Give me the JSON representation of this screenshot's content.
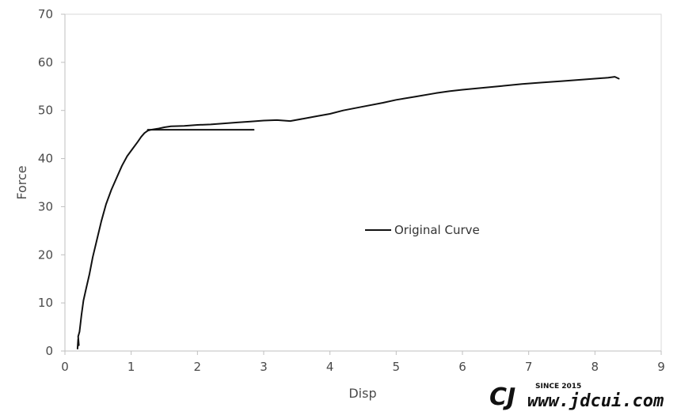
{
  "chart_data": {
    "type": "line",
    "xlabel": "Disp",
    "ylabel": "Force",
    "xlim": [
      0,
      9
    ],
    "ylim": [
      0,
      70
    ],
    "x_ticks": [
      0,
      1,
      2,
      3,
      4,
      5,
      6,
      7,
      8,
      9
    ],
    "y_ticks": [
      0,
      10,
      20,
      30,
      40,
      50,
      60,
      70
    ],
    "grid": false,
    "legend_position": "center-right",
    "series": [
      {
        "name": "Original Curve",
        "color": "#111111",
        "x": [
          0.19,
          0.2,
          0.21,
          0.2,
          0.22,
          0.25,
          0.28,
          0.32,
          0.37,
          0.42,
          0.48,
          0.55,
          0.62,
          0.7,
          0.78,
          0.86,
          0.94,
          1.02,
          1.1,
          1.15,
          1.2,
          1.25,
          1.3,
          1.4,
          1.5,
          1.6,
          1.8,
          2.0,
          2.2,
          2.4,
          2.6,
          2.8,
          3.0,
          3.2,
          3.4,
          3.6,
          3.8,
          4.0,
          4.2,
          4.5,
          4.8,
          5.0,
          5.3,
          5.6,
          5.8,
          6.0,
          6.3,
          6.6,
          6.9,
          7.2,
          7.5,
          7.8,
          8.0,
          8.2,
          8.3,
          8.36
        ],
        "y": [
          0.5,
          2.5,
          1.2,
          3.0,
          4.0,
          7.5,
          10.5,
          13.0,
          16.0,
          19.5,
          23.0,
          27.0,
          30.5,
          33.5,
          36.0,
          38.5,
          40.5,
          42.0,
          43.5,
          44.5,
          45.3,
          45.8,
          46.0,
          46.2,
          46.5,
          46.7,
          46.8,
          47.0,
          47.1,
          47.3,
          47.5,
          47.7,
          47.9,
          48.0,
          47.8,
          48.3,
          48.8,
          49.3,
          50.0,
          50.8,
          51.6,
          52.2,
          52.9,
          53.6,
          54.0,
          54.3,
          54.7,
          55.1,
          55.5,
          55.8,
          56.1,
          56.4,
          56.6,
          56.8,
          57.0,
          56.6
        ]
      },
      {
        "name": "",
        "color": "#111111",
        "x": [
          1.25,
          2.85
        ],
        "y": [
          46.0,
          46.0
        ]
      }
    ]
  },
  "watermark": {
    "logo_text": "CJ",
    "since": "SINCE 2015",
    "site": "www.jdcui.com"
  }
}
